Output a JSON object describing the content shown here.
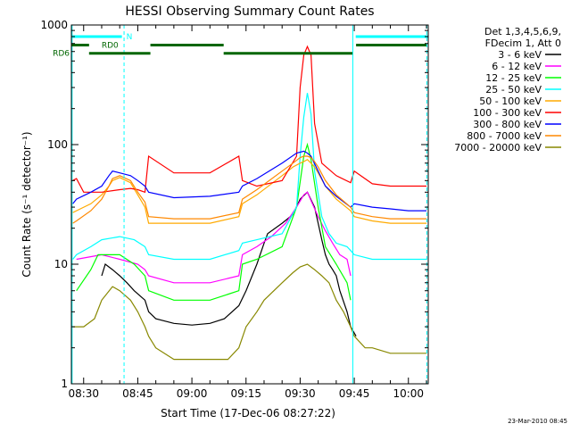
{
  "chart_data": {
    "type": "line",
    "title": "HESSI Observing Summary Count Rates",
    "xlabel": "Start Time (17-Dec-06 08:27:22)",
    "ylabel": "Count Rate (s⁻¹ detector⁻¹)",
    "y_scale": "log",
    "ylim": [
      1,
      1000
    ],
    "xlim_minutes_after_0830": [
      -3.4,
      95.5
    ],
    "x_ticks": [
      "08:30",
      "08:45",
      "09:00",
      "09:15",
      "09:30",
      "09:45",
      "10:00"
    ],
    "y_ticks": [
      "1",
      "10",
      "100",
      "1000"
    ],
    "legend_header": [
      "Det 1,3,4,5,6,9,",
      "FDecim 1, Att 0"
    ],
    "series": [
      {
        "name": "3 - 6 keV",
        "color": "#000000",
        "x": [
          5,
          6,
          8,
          10,
          12,
          14,
          17,
          18,
          20,
          25,
          30,
          35,
          39,
          43,
          45,
          48,
          50,
          51,
          55,
          58,
          60,
          62,
          64,
          65,
          66,
          67,
          68,
          69,
          70,
          71,
          73,
          74,
          75.5
        ],
        "y": [
          8,
          10,
          9,
          8,
          7,
          6,
          5,
          4,
          3.5,
          3.2,
          3.1,
          3.2,
          3.5,
          4.5,
          6,
          10,
          15,
          18,
          22,
          26,
          35,
          40,
          30,
          22,
          16,
          12,
          10,
          9,
          8,
          6,
          4,
          3,
          2.5
        ]
      },
      {
        "name": "6 - 12 keV",
        "color": "#ff00ff",
        "x": [
          -2,
          5,
          10,
          15,
          17,
          18,
          25,
          35,
          43,
          44,
          48,
          52,
          56,
          59,
          61,
          62,
          63,
          65,
          67,
          69,
          71,
          73,
          74
        ],
        "y": [
          11,
          12,
          11,
          10,
          9,
          8,
          7,
          7,
          8,
          12,
          14,
          17,
          22,
          30,
          38,
          40,
          34,
          25,
          19,
          15,
          12,
          11,
          8
        ]
      },
      {
        "name": "12 - 25 keV",
        "color": "#00ff00",
        "x": [
          -2,
          2,
          4,
          10,
          14,
          17,
          18,
          25,
          35,
          43,
          44,
          48,
          55,
          59,
          61,
          62,
          63,
          65,
          67,
          70,
          73,
          74
        ],
        "y": [
          6,
          9,
          12,
          12,
          10,
          8,
          6,
          5,
          5,
          6,
          10,
          11,
          14,
          30,
          80,
          100,
          75,
          30,
          14,
          10,
          7,
          5
        ]
      },
      {
        "name": "25 - 50 keV",
        "color": "#00ffff",
        "x": [
          -3,
          -2,
          2,
          5,
          10,
          14,
          17,
          18,
          25,
          35,
          43,
          44,
          48,
          55,
          59,
          60,
          61,
          62,
          63,
          64,
          66,
          68,
          70,
          73,
          74,
          75,
          80,
          85,
          90,
          95
        ],
        "y": [
          11,
          12,
          14,
          16,
          17,
          16,
          14,
          12,
          11,
          11,
          13,
          15,
          16,
          18,
          30,
          80,
          170,
          270,
          180,
          60,
          25,
          18,
          15,
          14,
          13,
          12,
          11,
          11,
          11,
          11
        ]
      },
      {
        "name": "50 - 100 keV",
        "color": "#ffaa00",
        "x": [
          -3,
          -2,
          2,
          5,
          7,
          8,
          10,
          13,
          15,
          17,
          18,
          25,
          35,
          43,
          44,
          48,
          55,
          58,
          60,
          61,
          62,
          63,
          64,
          65,
          67,
          70,
          74,
          75,
          80,
          85,
          90,
          95
        ],
        "y": [
          27,
          28,
          32,
          38,
          45,
          50,
          53,
          48,
          38,
          30,
          22,
          22,
          22,
          25,
          32,
          38,
          55,
          65,
          70,
          72,
          75,
          70,
          65,
          58,
          45,
          35,
          28,
          25,
          23,
          22,
          22,
          22
        ]
      },
      {
        "name": "100 - 300 keV",
        "color": "#ff0000",
        "x": [
          -3,
          -2,
          0,
          5,
          10,
          13,
          15,
          17,
          18,
          25,
          35,
          43,
          44,
          48,
          55,
          59,
          60,
          61,
          62,
          63,
          64,
          66,
          70,
          74,
          75,
          80,
          85,
          90,
          95
        ],
        "y": [
          50,
          52,
          40,
          40,
          42,
          43,
          42,
          40,
          80,
          58,
          58,
          80,
          50,
          45,
          50,
          80,
          300,
          560,
          660,
          560,
          150,
          70,
          55,
          48,
          60,
          47,
          45,
          45,
          45
        ]
      },
      {
        "name": "300 - 800 keV",
        "color": "#0000ff",
        "x": [
          -3,
          -2,
          2,
          5,
          7,
          8,
          10,
          13,
          15,
          17,
          18,
          25,
          35,
          43,
          44,
          48,
          55,
          59,
          61,
          62,
          63,
          65,
          67,
          70,
          74,
          75,
          80,
          85,
          90,
          95
        ],
        "y": [
          32,
          35,
          40,
          45,
          55,
          60,
          58,
          55,
          50,
          45,
          40,
          36,
          37,
          40,
          45,
          52,
          70,
          85,
          88,
          85,
          80,
          60,
          45,
          37,
          30,
          32,
          30,
          29,
          28,
          28
        ]
      },
      {
        "name": "800 - 7000 keV",
        "color": "#ff8800",
        "x": [
          -3,
          -2,
          2,
          5,
          7,
          8,
          10,
          13,
          15,
          17,
          18,
          25,
          35,
          43,
          44,
          48,
          55,
          58,
          60,
          61,
          62,
          63,
          64,
          65,
          67,
          70,
          74,
          75,
          80,
          85,
          90,
          95
        ],
        "y": [
          22,
          23,
          28,
          35,
          45,
          52,
          55,
          50,
          40,
          33,
          25,
          24,
          24,
          27,
          35,
          42,
          60,
          70,
          78,
          80,
          80,
          78,
          72,
          65,
          50,
          38,
          30,
          27,
          25,
          24,
          24,
          24
        ]
      },
      {
        "name": "7000 - 20000 keV",
        "color": "#888800",
        "x": [
          -3,
          0,
          3,
          5,
          8,
          10,
          13,
          15,
          17,
          18,
          20,
          25,
          30,
          35,
          40,
          43,
          45,
          48,
          50,
          55,
          58,
          60,
          62,
          64,
          66,
          68,
          70,
          72,
          74,
          75,
          78,
          80,
          85,
          90,
          95
        ],
        "y": [
          3,
          3,
          3.5,
          5,
          6.5,
          6,
          5,
          4,
          3,
          2.5,
          2,
          1.6,
          1.6,
          1.6,
          1.6,
          2,
          3,
          4,
          5,
          7,
          8.5,
          9.5,
          10,
          9,
          8,
          7,
          5,
          4,
          3,
          2.5,
          2,
          2,
          1.8,
          1.8,
          1.8
        ]
      }
    ],
    "annotations": [
      {
        "label": "N",
        "color": "#00ffff",
        "segments": [
          [
            -3.4,
            10.6
          ],
          [
            75.4,
            95.5
          ]
        ],
        "level": 800
      },
      {
        "label": "RD0",
        "color": "#006600",
        "segments": [
          [
            -3.4,
            1.5
          ],
          [
            18.5,
            38.8
          ],
          [
            75.5,
            95
          ]
        ],
        "level": 680
      },
      {
        "label": "RD6",
        "color": "#006600",
        "segments": [
          [
            1.5,
            18.5
          ],
          [
            38.8,
            74.5
          ]
        ],
        "level": 580
      }
    ],
    "vertical_markers": [
      {
        "type": "dashed",
        "color": "#00ffff",
        "x": [
          11.2,
          95.1
        ]
      },
      {
        "type": "solid",
        "color": "#00ffff",
        "x": [
          -3.2,
          74.6
        ]
      }
    ],
    "date_stamp": "23-Mar-2010 08:45"
  }
}
